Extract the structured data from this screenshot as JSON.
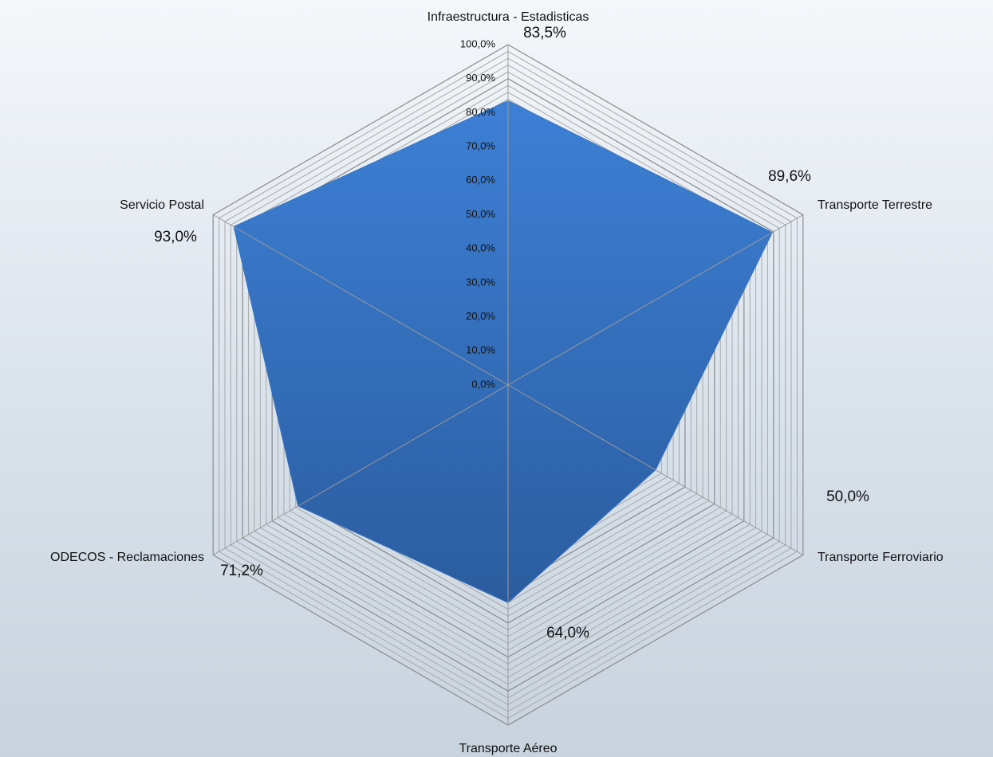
{
  "chart_data": {
    "type": "radar",
    "categories": [
      "Infraestructura - Estadisticas",
      "Transporte Terrestre",
      "Transporte Ferroviario",
      "Transporte Aéreo",
      "ODECOS - Reclamaciones",
      "Servicio Postal"
    ],
    "values": [
      83.5,
      89.6,
      50.0,
      64.0,
      71.2,
      93.0
    ],
    "value_labels": [
      "83,5%",
      "89,6%",
      "50,0%",
      "64,0%",
      "71,2%",
      "93,0%"
    ],
    "color": "#3373c4",
    "ylim": [
      0,
      100
    ],
    "yticks": [
      {
        "value": 0,
        "label": "0,0%"
      },
      {
        "value": 10,
        "label": "10,0%"
      },
      {
        "value": 20,
        "label": "20,0%"
      },
      {
        "value": 30,
        "label": "30,0%"
      },
      {
        "value": 40,
        "label": "40,0%"
      },
      {
        "value": 50,
        "label": "50,0%"
      },
      {
        "value": 60,
        "label": "60,0%"
      },
      {
        "value": 70,
        "label": "70,0%"
      },
      {
        "value": 80,
        "label": "80,0%"
      },
      {
        "value": 90,
        "label": "90,0%"
      },
      {
        "value": 100,
        "label": "100,0%"
      }
    ],
    "minor_yticks": [
      2,
      4,
      6,
      8,
      12,
      14,
      16,
      18,
      22,
      24,
      26,
      28,
      32,
      34,
      36,
      38,
      42,
      44,
      46,
      48,
      52,
      54,
      56,
      58,
      62,
      64,
      66,
      68,
      72,
      74,
      76,
      78,
      82,
      84,
      86,
      88,
      92,
      94,
      96,
      98
    ],
    "grid": true
  }
}
